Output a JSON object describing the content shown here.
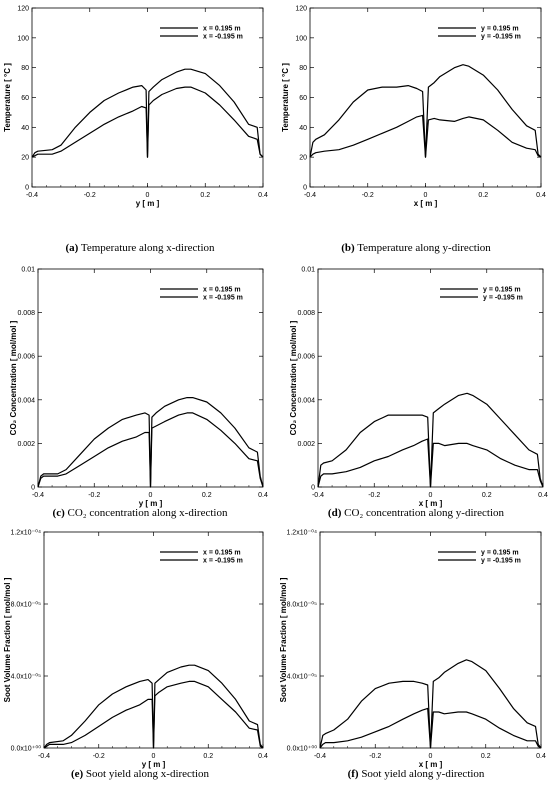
{
  "chart_data": [
    {
      "type": "line",
      "caption_prefix": "(a)",
      "caption_text": "Temperature along x-direction",
      "xlabel": "y [ m ]",
      "ylabel": "Temperature [ °C ]",
      "xlim": [
        -0.4,
        0.4
      ],
      "ylim": [
        0,
        120
      ],
      "xticks": [
        -0.4,
        -0.2,
        0,
        0.2,
        0.4
      ],
      "xtick_labels": [
        "-0.4",
        "-0.2",
        "0",
        "0.2",
        "0.4"
      ],
      "yticks": [
        0,
        20,
        40,
        60,
        80,
        100,
        120
      ],
      "ytick_labels": [
        "0",
        "20",
        "40",
        "60",
        "80",
        "100",
        "120"
      ],
      "legend_position": "top-right",
      "series": [
        {
          "name": "x = 0.195 m",
          "x": [
            -0.4,
            -0.39,
            -0.38,
            -0.33,
            -0.3,
            -0.25,
            -0.2,
            -0.15,
            -0.1,
            -0.05,
            -0.02,
            -0.005,
            0.0,
            0.005,
            0.02,
            0.05,
            0.1,
            0.13,
            0.15,
            0.2,
            0.25,
            0.3,
            0.35,
            0.38,
            0.39,
            0.4
          ],
          "y": [
            20,
            23,
            24,
            25,
            28,
            40,
            50,
            58,
            63,
            67,
            68,
            65,
            20,
            64,
            67,
            72,
            77,
            79,
            79,
            76,
            68,
            57,
            42,
            40,
            22,
            20
          ]
        },
        {
          "name": "x = -0.195 m",
          "x": [
            -0.4,
            -0.39,
            -0.38,
            -0.33,
            -0.3,
            -0.25,
            -0.2,
            -0.15,
            -0.1,
            -0.05,
            -0.02,
            -0.005,
            0.0,
            0.005,
            0.02,
            0.05,
            0.1,
            0.13,
            0.15,
            0.2,
            0.25,
            0.3,
            0.35,
            0.38,
            0.39,
            0.4
          ],
          "y": [
            20,
            21,
            22,
            22,
            24,
            30,
            36,
            42,
            47,
            51,
            54,
            53,
            20,
            55,
            58,
            62,
            66,
            67,
            67,
            63,
            55,
            45,
            34,
            32,
            22,
            20
          ]
        }
      ]
    },
    {
      "type": "line",
      "caption_prefix": "(b)",
      "caption_text": "Temperature along y-direction",
      "xlabel": "x [ m ]",
      "ylabel": "Temperature [ °C ]",
      "xlim": [
        -0.4,
        0.4
      ],
      "ylim": [
        0,
        120
      ],
      "xticks": [
        -0.4,
        -0.2,
        0,
        0.2,
        0.4
      ],
      "xtick_labels": [
        "-0.4",
        "-0.2",
        "0",
        "0.2",
        "0.4"
      ],
      "yticks": [
        0,
        20,
        40,
        60,
        80,
        100,
        120
      ],
      "ytick_labels": [
        "0",
        "20",
        "40",
        "60",
        "80",
        "100",
        "120"
      ],
      "legend_position": "top-right",
      "series": [
        {
          "name": "y = 0.195 m",
          "x": [
            -0.4,
            -0.39,
            -0.38,
            -0.35,
            -0.3,
            -0.25,
            -0.2,
            -0.15,
            -0.1,
            -0.06,
            -0.03,
            -0.01,
            0.0,
            0.01,
            0.03,
            0.05,
            0.1,
            0.13,
            0.15,
            0.2,
            0.25,
            0.3,
            0.35,
            0.38,
            0.39,
            0.4
          ],
          "y": [
            20,
            30,
            32,
            35,
            45,
            57,
            65,
            67,
            67,
            68,
            66,
            64,
            20,
            67,
            70,
            74,
            80,
            82,
            81,
            75,
            65,
            52,
            41,
            38,
            22,
            20
          ]
        },
        {
          "name": "y = -0.195 m",
          "x": [
            -0.4,
            -0.39,
            -0.38,
            -0.35,
            -0.3,
            -0.25,
            -0.2,
            -0.15,
            -0.1,
            -0.06,
            -0.03,
            -0.01,
            0.0,
            0.01,
            0.03,
            0.05,
            0.1,
            0.13,
            0.15,
            0.2,
            0.25,
            0.3,
            0.35,
            0.38,
            0.39,
            0.4
          ],
          "y": [
            20,
            22,
            23,
            24,
            25,
            28,
            32,
            36,
            40,
            44,
            47,
            48,
            20,
            45,
            46,
            45,
            44,
            46,
            47,
            45,
            38,
            30,
            26,
            25,
            21,
            20
          ]
        }
      ]
    },
    {
      "type": "line",
      "caption_prefix": "(c)",
      "caption_text": "CO₂ concentration along x-direction",
      "xlabel": "y [ m ]",
      "ylabel": "CO₂ Concentration [ mol/mol ]",
      "xlim": [
        -0.4,
        0.4
      ],
      "ylim": [
        0,
        0.01
      ],
      "xticks": [
        -0.4,
        -0.2,
        0,
        0.2,
        0.4
      ],
      "xtick_labels": [
        "-0.4",
        "-0.2",
        "0",
        "0.2",
        "0.4"
      ],
      "yticks": [
        0,
        0.002,
        0.004,
        0.006,
        0.008,
        0.01
      ],
      "ytick_labels": [
        "0",
        "0.002",
        "0.004",
        "0.006",
        "0.008",
        "0.01"
      ],
      "legend_position": "top-right",
      "series": [
        {
          "name": "x = 0.195 m",
          "x": [
            -0.4,
            -0.39,
            -0.38,
            -0.33,
            -0.3,
            -0.25,
            -0.2,
            -0.15,
            -0.1,
            -0.05,
            -0.02,
            -0.005,
            0.0,
            0.005,
            0.02,
            0.05,
            0.1,
            0.13,
            0.15,
            0.2,
            0.25,
            0.3,
            0.35,
            0.38,
            0.39,
            0.4
          ],
          "y": [
            0.0,
            0.0005,
            0.0006,
            0.0006,
            0.0008,
            0.0015,
            0.0022,
            0.0027,
            0.0031,
            0.0033,
            0.0034,
            0.0033,
            0.0,
            0.0032,
            0.0034,
            0.0037,
            0.004,
            0.0041,
            0.0041,
            0.0039,
            0.0034,
            0.0027,
            0.0018,
            0.0016,
            0.0005,
            0.0
          ]
        },
        {
          "name": "x = -0.195 m",
          "x": [
            -0.4,
            -0.39,
            -0.38,
            -0.33,
            -0.3,
            -0.25,
            -0.2,
            -0.15,
            -0.1,
            -0.05,
            -0.02,
            -0.005,
            0.0,
            0.005,
            0.02,
            0.05,
            0.1,
            0.13,
            0.15,
            0.2,
            0.25,
            0.3,
            0.35,
            0.38,
            0.39,
            0.4
          ],
          "y": [
            0.0,
            0.0004,
            0.0005,
            0.0005,
            0.0006,
            0.001,
            0.0014,
            0.0018,
            0.0021,
            0.0023,
            0.0025,
            0.0025,
            0.0,
            0.0027,
            0.0028,
            0.003,
            0.0033,
            0.0034,
            0.0034,
            0.0031,
            0.0026,
            0.002,
            0.0013,
            0.0012,
            0.0004,
            0.0
          ]
        }
      ]
    },
    {
      "type": "line",
      "caption_prefix": "(d)",
      "caption_text": "CO₂ concentration along y-direction",
      "xlabel": "x [ m ]",
      "ylabel": "CO₂ Concentration [ mol/mol ]",
      "xlim": [
        -0.4,
        0.4
      ],
      "ylim": [
        0,
        0.01
      ],
      "xticks": [
        -0.4,
        -0.2,
        0,
        0.2,
        0.4
      ],
      "xtick_labels": [
        "-0.4",
        "-0.2",
        "0",
        "0.2",
        "0.4"
      ],
      "yticks": [
        0,
        0.002,
        0.004,
        0.006,
        0.008,
        0.01
      ],
      "ytick_labels": [
        "0",
        "0.002",
        "0.004",
        "0.006",
        "0.008",
        "0.01"
      ],
      "legend_position": "top-right",
      "series": [
        {
          "name": "y = 0.195 m",
          "x": [
            -0.4,
            -0.39,
            -0.38,
            -0.35,
            -0.3,
            -0.25,
            -0.2,
            -0.15,
            -0.1,
            -0.06,
            -0.03,
            -0.01,
            0.0,
            0.01,
            0.03,
            0.05,
            0.1,
            0.13,
            0.15,
            0.2,
            0.25,
            0.3,
            0.35,
            0.38,
            0.39,
            0.4
          ],
          "y": [
            0.0,
            0.001,
            0.0011,
            0.0012,
            0.0017,
            0.0025,
            0.003,
            0.0033,
            0.0033,
            0.0033,
            0.0033,
            0.0032,
            0.0,
            0.0034,
            0.0036,
            0.0038,
            0.0042,
            0.0043,
            0.0042,
            0.0038,
            0.0031,
            0.0024,
            0.0017,
            0.0015,
            0.0004,
            0.0
          ]
        },
        {
          "name": "y = -0.195 m",
          "x": [
            -0.4,
            -0.39,
            -0.38,
            -0.35,
            -0.3,
            -0.25,
            -0.2,
            -0.15,
            -0.1,
            -0.06,
            -0.03,
            -0.01,
            0.0,
            0.01,
            0.03,
            0.05,
            0.1,
            0.13,
            0.15,
            0.2,
            0.25,
            0.3,
            0.35,
            0.38,
            0.39,
            0.4
          ],
          "y": [
            0.0,
            0.0005,
            0.0006,
            0.0006,
            0.0007,
            0.0009,
            0.0012,
            0.0014,
            0.0017,
            0.0019,
            0.0021,
            0.0022,
            0.0,
            0.002,
            0.002,
            0.0019,
            0.002,
            0.002,
            0.0019,
            0.0017,
            0.0013,
            0.001,
            0.0008,
            0.0008,
            0.0003,
            0.0
          ]
        }
      ]
    },
    {
      "type": "line",
      "caption_prefix": "(e)",
      "caption_text": "Soot yield along x-direction",
      "xlabel": "y [ m ]",
      "ylabel": "Soot Volume Fraction [ mol/mol ]",
      "xlim": [
        -0.4,
        0.4
      ],
      "ylim": [
        0,
        0.00012
      ],
      "xticks": [
        -0.4,
        -0.2,
        0,
        0.2,
        0.4
      ],
      "xtick_labels": [
        "-0.4",
        "-0.2",
        "0",
        "0.2",
        "0.4"
      ],
      "yticks": [
        0,
        4e-05,
        8e-05,
        0.00012
      ],
      "ytick_labels": [
        "0.0x10⁺⁰⁰",
        "4.0x10⁻⁰⁵",
        "8.0x10⁻⁰⁵",
        "1.2x10⁻⁰⁴"
      ],
      "legend_position": "top-right",
      "series": [
        {
          "name": "x = 0.195 m",
          "x": [
            -0.4,
            -0.39,
            -0.38,
            -0.33,
            -0.3,
            -0.25,
            -0.2,
            -0.15,
            -0.1,
            -0.05,
            -0.02,
            -0.005,
            0.0,
            0.005,
            0.02,
            0.05,
            0.1,
            0.13,
            0.15,
            0.2,
            0.25,
            0.3,
            0.35,
            0.38,
            0.39,
            0.4
          ],
          "y": [
            0.0,
            2e-06,
            3e-06,
            4e-06,
            7e-06,
            1.5e-05,
            2.4e-05,
            3e-05,
            3.4e-05,
            3.7e-05,
            3.8e-05,
            3.6e-05,
            0.0,
            3.6e-05,
            3.8e-05,
            4.2e-05,
            4.5e-05,
            4.6e-05,
            4.6e-05,
            4.3e-05,
            3.6e-05,
            2.7e-05,
            1.5e-05,
            1.3e-05,
            2e-06,
            0.0
          ]
        },
        {
          "name": "x = -0.195 m",
          "x": [
            -0.4,
            -0.39,
            -0.38,
            -0.33,
            -0.3,
            -0.25,
            -0.2,
            -0.15,
            -0.1,
            -0.05,
            -0.02,
            -0.005,
            0.0,
            0.005,
            0.02,
            0.05,
            0.1,
            0.13,
            0.15,
            0.2,
            0.25,
            0.3,
            0.35,
            0.38,
            0.39,
            0.4
          ],
          "y": [
            0.0,
            1e-06,
            2e-06,
            2e-06,
            3e-06,
            7e-06,
            1.2e-05,
            1.7e-05,
            2.1e-05,
            2.4e-05,
            2.7e-05,
            2.7e-05,
            0.0,
            2.9e-05,
            3.1e-05,
            3.4e-05,
            3.6e-05,
            3.7e-05,
            3.7e-05,
            3.4e-05,
            2.7e-05,
            2e-05,
            1.1e-05,
            1e-05,
            1e-06,
            0.0
          ]
        }
      ]
    },
    {
      "type": "line",
      "caption_prefix": "(f)",
      "caption_text": "Soot yield along y-direction",
      "xlabel": "x [ m ]",
      "ylabel": "Soot Volume Fraction [ mol/mol ]",
      "xlim": [
        -0.4,
        0.4
      ],
      "ylim": [
        0,
        0.00012
      ],
      "xticks": [
        -0.4,
        -0.2,
        0,
        0.2,
        0.4
      ],
      "xtick_labels": [
        "-0.4",
        "-0.2",
        "0",
        "0.2",
        "0.4"
      ],
      "yticks": [
        0,
        4e-05,
        8e-05,
        0.00012
      ],
      "ytick_labels": [
        "0.0x10⁺⁰⁰",
        "4.0x10⁻⁰⁵",
        "8.0x10⁻⁰⁵",
        "1.2x10⁻⁰⁴"
      ],
      "legend_position": "top-right",
      "series": [
        {
          "name": "y = 0.195 m",
          "x": [
            -0.4,
            -0.39,
            -0.38,
            -0.35,
            -0.3,
            -0.25,
            -0.2,
            -0.15,
            -0.1,
            -0.06,
            -0.03,
            -0.01,
            0.0,
            0.01,
            0.03,
            0.05,
            0.1,
            0.13,
            0.15,
            0.2,
            0.25,
            0.3,
            0.35,
            0.38,
            0.39,
            0.4
          ],
          "y": [
            0.0,
            7e-06,
            8e-06,
            1e-05,
            1.6e-05,
            2.6e-05,
            3.3e-05,
            3.6e-05,
            3.7e-05,
            3.7e-05,
            3.6e-05,
            3.5e-05,
            0.0,
            3.7e-05,
            3.9e-05,
            4.2e-05,
            4.7e-05,
            4.9e-05,
            4.8e-05,
            4.3e-05,
            3.3e-05,
            2.2e-05,
            1.4e-05,
            1.2e-05,
            2e-06,
            0.0
          ]
        },
        {
          "name": "y = -0.195 m",
          "x": [
            -0.4,
            -0.39,
            -0.38,
            -0.35,
            -0.3,
            -0.25,
            -0.2,
            -0.15,
            -0.1,
            -0.06,
            -0.03,
            -0.01,
            0.0,
            0.01,
            0.03,
            0.05,
            0.1,
            0.13,
            0.15,
            0.2,
            0.25,
            0.3,
            0.35,
            0.38,
            0.39,
            0.4
          ],
          "y": [
            0.0,
            2e-06,
            3e-06,
            3e-06,
            4e-06,
            6e-06,
            9e-06,
            1.2e-05,
            1.6e-05,
            1.9e-05,
            2.1e-05,
            2.2e-05,
            0.0,
            2e-05,
            2e-05,
            1.9e-05,
            2e-05,
            2e-05,
            1.9e-05,
            1.6e-05,
            1.1e-05,
            7e-06,
            4e-06,
            4e-06,
            1e-06,
            0.0
          ]
        }
      ]
    }
  ]
}
